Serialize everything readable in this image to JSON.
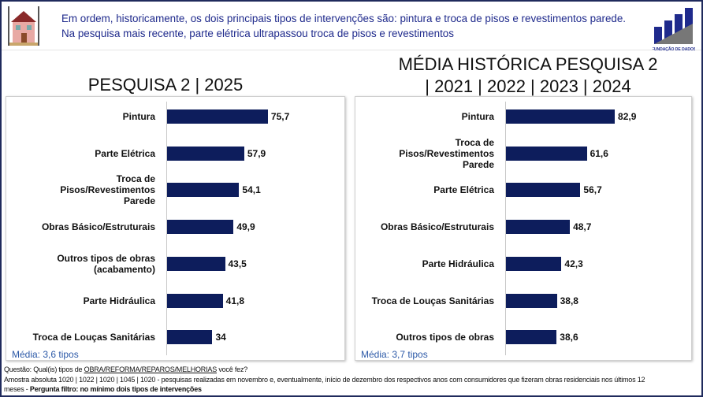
{
  "header": {
    "line1": "Em ordem, historicamente, os dois principais tipos de intervenções são: pintura e troca de pisos e revestimentos parede.",
    "line2": "Na pesquisa mais recente, parte elétrica ultrapassou troca de pisos e revestimentos",
    "logo_text": "FUNDAÇÃO DE DADOS"
  },
  "chart_data": [
    {
      "type": "bar",
      "orientation": "horizontal",
      "title": "PESQUISA 2 | 2025",
      "categories": [
        "Pintura",
        "Parte Elétrica",
        "Troca de Pisos/Revestimentos Parede",
        "Obras Básico/Estruturais",
        "Outros tipos de obras (acabamento)",
        "Parte Hidráulica",
        "Troca de Louças Sanitárias"
      ],
      "labels": [
        [
          "Pintura"
        ],
        [
          "Parte Elétrica"
        ],
        [
          "Troca de",
          "Pisos/Revestimentos",
          "Parede"
        ],
        [
          "Obras Básico/Estruturais"
        ],
        [
          "Outros tipos de obras",
          "(acabamento)"
        ],
        [
          "Parte Hidráulica"
        ],
        [
          "Troca de Louças Sanitárias"
        ]
      ],
      "values": [
        75.7,
        57.9,
        54.1,
        49.9,
        43.5,
        41.8,
        34
      ],
      "value_labels": [
        "75,7",
        "57,9",
        "54,1",
        "49,9",
        "43,5",
        "41,8",
        "34"
      ],
      "note": "Média: 3,6 tipos",
      "color": "#0d1d5c"
    },
    {
      "type": "bar",
      "orientation": "horizontal",
      "title": "MÉDIA HISTÓRICA PESQUISA 2 | 2021 | 2022 | 2023 | 2024",
      "title_lines": [
        "MÉDIA HISTÓRICA PESQUISA 2",
        "| 2021 | 2022 | 2023 | 2024"
      ],
      "categories": [
        "Pintura",
        "Troca de Pisos/Revestimentos Parede",
        "Parte Elétrica",
        "Obras Básico/Estruturais",
        "Parte Hidráulica",
        "Troca de Louças Sanitárias",
        "Outros tipos de obras"
      ],
      "labels": [
        [
          "Pintura"
        ],
        [
          "Troca de",
          "Pisos/Revestimentos",
          "Parede"
        ],
        [
          "Parte Elétrica"
        ],
        [
          "Obras Básico/Estruturais"
        ],
        [
          "Parte Hidráulica"
        ],
        [
          "Troca de Louças Sanitárias"
        ],
        [
          "Outros tipos de obras"
        ]
      ],
      "values": [
        82.9,
        61.6,
        56.7,
        48.7,
        42.3,
        38.8,
        38.6
      ],
      "value_labels": [
        "82,9",
        "61,6",
        "56,7",
        "48,7",
        "42,3",
        "38,8",
        "38,6"
      ],
      "note": "Média: 3,7 tipos",
      "color": "#0d1d5c"
    }
  ],
  "footer": {
    "question_prefix": "Questão: Qual(is) tipos de ",
    "question_underlined": "OBRA/REFORMA/REPAROS/MELHORIAS",
    "question_suffix": " você fez?",
    "sample_line1": "Amostra absoluta 1020 | 1022 | 1020 | 1045 | 1020 - pesquisas realizadas em novembro e, eventualmente, início de dezembro dos respectivos anos com consumidores que fizeram obras residenciais nos últimos 12",
    "sample_line2": "meses - ",
    "filter": "Pergunta filtro: no mínimo dois tipos de intervenções"
  }
}
